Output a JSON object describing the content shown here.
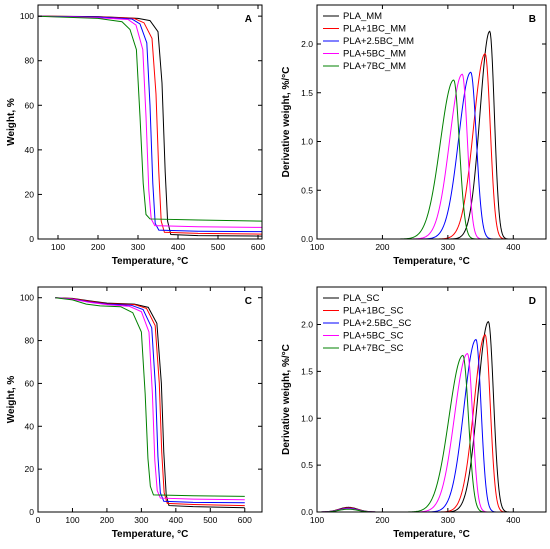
{
  "figure": {
    "background": "#ffffff"
  },
  "chart_data": [
    {
      "type": "line",
      "panel_label": "A",
      "xlabel": "Temperature, °C",
      "ylabel": "Weight, %",
      "xlim": [
        50,
        610
      ],
      "ylim": [
        0,
        105
      ],
      "xticks": [
        100,
        200,
        300,
        400,
        500,
        600
      ],
      "yticks": [
        0,
        20,
        40,
        60,
        80,
        100
      ],
      "legend": null,
      "series": [
        {
          "color": "#000000",
          "points": [
            [
              40,
              100
            ],
            [
              200,
              99.8
            ],
            [
              300,
              99
            ],
            [
              330,
              98
            ],
            [
              350,
              93
            ],
            [
              360,
              70
            ],
            [
              368,
              30
            ],
            [
              374,
              8
            ],
            [
              382,
              2
            ],
            [
              450,
              1.5
            ],
            [
              610,
              1.3
            ]
          ]
        },
        {
          "color": "#ff0000",
          "points": [
            [
              40,
              100
            ],
            [
              200,
              99.7
            ],
            [
              290,
              99
            ],
            [
              315,
              97
            ],
            [
              335,
              90
            ],
            [
              345,
              65
            ],
            [
              352,
              30
            ],
            [
              358,
              8
            ],
            [
              366,
              3
            ],
            [
              450,
              2.5
            ],
            [
              610,
              2.2
            ]
          ]
        },
        {
          "color": "#0000ff",
          "points": [
            [
              40,
              100
            ],
            [
              200,
              99.6
            ],
            [
              285,
              98.7
            ],
            [
              305,
              96.5
            ],
            [
              322,
              88
            ],
            [
              330,
              60
            ],
            [
              337,
              25
            ],
            [
              343,
              7
            ],
            [
              352,
              4
            ],
            [
              450,
              3.5
            ],
            [
              610,
              3.3
            ]
          ]
        },
        {
          "color": "#ff00ff",
          "points": [
            [
              40,
              100
            ],
            [
              200,
              99.3
            ],
            [
              275,
              98.5
            ],
            [
              295,
              96
            ],
            [
              312,
              85
            ],
            [
              320,
              55
            ],
            [
              327,
              22
            ],
            [
              333,
              9
            ],
            [
              342,
              6
            ],
            [
              450,
              5.5
            ],
            [
              610,
              5.2
            ]
          ]
        },
        {
          "color": "#008000",
          "points": [
            [
              40,
              100
            ],
            [
              200,
              99
            ],
            [
              260,
              97.5
            ],
            [
              280,
              94
            ],
            [
              296,
              85
            ],
            [
              305,
              55
            ],
            [
              313,
              25
            ],
            [
              320,
              11
            ],
            [
              330,
              9
            ],
            [
              450,
              8.5
            ],
            [
              610,
              8
            ]
          ]
        }
      ]
    },
    {
      "type": "line",
      "panel_label": "B",
      "xlabel": "Temperature, °C",
      "ylabel": "Derivative weight, %/°C",
      "xlim": [
        100,
        450
      ],
      "ylim": [
        0,
        2.4
      ],
      "xticks": [
        100,
        200,
        300,
        400
      ],
      "yticks": [
        0.0,
        0.5,
        1.0,
        1.5,
        2.0
      ],
      "legend": "top-left",
      "series": [
        {
          "name": "PLA_MM",
          "color": "#000000",
          "peak_x": 364,
          "peak_y": 2.13,
          "w_left": 21,
          "w_right": 10
        },
        {
          "name": "PLA+1BC_MM",
          "color": "#ff0000",
          "peak_x": 357,
          "peak_y": 1.9,
          "w_left": 25,
          "w_right": 11
        },
        {
          "name": "PLA+2.5BC_MM",
          "color": "#0000ff",
          "peak_x": 335,
          "peak_y": 1.71,
          "w_left": 26,
          "w_right": 12
        },
        {
          "name": "PLA+5BC_MM",
          "color": "#ff00ff",
          "peak_x": 322,
          "peak_y": 1.69,
          "w_left": 27,
          "w_right": 11
        },
        {
          "name": "PLA+7BC_MM",
          "color": "#008000",
          "peak_x": 309,
          "peak_y": 1.63,
          "w_left": 29,
          "w_right": 12
        }
      ]
    },
    {
      "type": "line",
      "panel_label": "C",
      "xlabel": "Temperature, °C",
      "ylabel": "Weight, %",
      "xlim": [
        0,
        650
      ],
      "ylim": [
        0,
        105
      ],
      "xticks": [
        0,
        100,
        200,
        300,
        400,
        500,
        600
      ],
      "yticks": [
        0,
        20,
        40,
        60,
        80,
        100
      ],
      "legend": null,
      "series": [
        {
          "color": "#000000",
          "points": [
            [
              50,
              100
            ],
            [
              100,
              99.7
            ],
            [
              150,
              98.5
            ],
            [
              200,
              97.5
            ],
            [
              280,
              97
            ],
            [
              320,
              95.5
            ],
            [
              345,
              88
            ],
            [
              358,
              60
            ],
            [
              365,
              28
            ],
            [
              372,
              8
            ],
            [
              380,
              3
            ],
            [
              450,
              2.5
            ],
            [
              600,
              2
            ]
          ]
        },
        {
          "color": "#ff0000",
          "points": [
            [
              50,
              100
            ],
            [
              100,
              99.6
            ],
            [
              150,
              98.3
            ],
            [
              200,
              97.2
            ],
            [
              280,
              96.8
            ],
            [
              315,
              95
            ],
            [
              340,
              87
            ],
            [
              352,
              60
            ],
            [
              359,
              28
            ],
            [
              366,
              9
            ],
            [
              375,
              4
            ],
            [
              450,
              3.5
            ],
            [
              600,
              3
            ]
          ]
        },
        {
          "color": "#0000ff",
          "points": [
            [
              50,
              100
            ],
            [
              100,
              99.4
            ],
            [
              150,
              98
            ],
            [
              200,
              97
            ],
            [
              270,
              96.5
            ],
            [
              305,
              94.5
            ],
            [
              330,
              86
            ],
            [
              341,
              58
            ],
            [
              348,
              26
            ],
            [
              355,
              9
            ],
            [
              365,
              5
            ],
            [
              450,
              4.5
            ],
            [
              600,
              4.3
            ]
          ]
        },
        {
          "color": "#ff00ff",
          "points": [
            [
              50,
              100
            ],
            [
              100,
              99.3
            ],
            [
              150,
              97.8
            ],
            [
              200,
              96.8
            ],
            [
              265,
              96
            ],
            [
              300,
              93.5
            ],
            [
              322,
              84
            ],
            [
              332,
              55
            ],
            [
              339,
              24
            ],
            [
              346,
              10
            ],
            [
              355,
              6.5
            ],
            [
              450,
              6
            ],
            [
              600,
              5.7
            ]
          ]
        },
        {
          "color": "#008000",
          "points": [
            [
              50,
              100
            ],
            [
              100,
              99
            ],
            [
              140,
              97
            ],
            [
              180,
              96.2
            ],
            [
              240,
              95.8
            ],
            [
              275,
              93
            ],
            [
              300,
              84
            ],
            [
              311,
              55
            ],
            [
              319,
              25
            ],
            [
              326,
              12
            ],
            [
              335,
              8
            ],
            [
              450,
              7.6
            ],
            [
              600,
              7.3
            ]
          ]
        }
      ]
    },
    {
      "type": "line",
      "panel_label": "D",
      "xlabel": "Temperature, °C",
      "ylabel": "Derivative weight, %/°C",
      "xlim": [
        100,
        450
      ],
      "ylim": [
        0,
        2.4
      ],
      "xticks": [
        100,
        200,
        300,
        400
      ],
      "yticks": [
        0.0,
        0.5,
        1.0,
        1.5,
        2.0
      ],
      "legend": "top-left",
      "series": [
        {
          "name": "PLA_SC",
          "color": "#000000",
          "peak_x": 362,
          "peak_y": 2.03,
          "w_left": 23,
          "w_right": 11
        },
        {
          "name": "PLA+1BC_SC",
          "color": "#ff0000",
          "peak_x": 357,
          "peak_y": 1.89,
          "w_left": 24,
          "w_right": 11
        },
        {
          "name": "PLA+2.5BC_SC",
          "color": "#0000ff",
          "peak_x": 343,
          "peak_y": 1.84,
          "w_left": 26,
          "w_right": 11
        },
        {
          "name": "PLA+5BC_SC",
          "color": "#ff00ff",
          "peak_x": 330,
          "peak_y": 1.69,
          "w_left": 28,
          "w_right": 11
        },
        {
          "name": "PLA+7BC_SC",
          "color": "#008000",
          "peak_x": 323,
          "peak_y": 1.67,
          "w_left": 30,
          "w_right": 12
        }
      ],
      "low_temp_bump": {
        "center": 148,
        "height": 0.05,
        "width": 20
      }
    }
  ]
}
